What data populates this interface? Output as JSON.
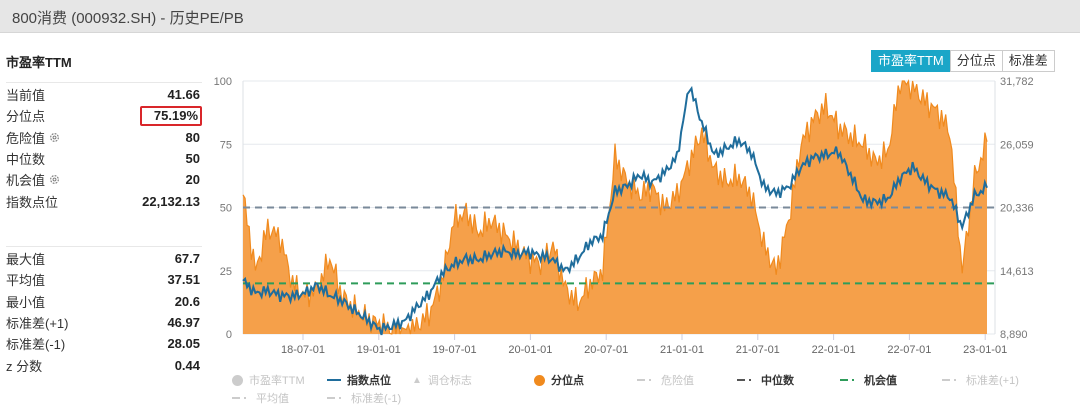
{
  "window": {
    "title": "800消费 (000932.SH) - 历史PE/PB"
  },
  "left_panel": {
    "section_title": "市盈率TTM",
    "stats_top": [
      {
        "label": "当前值",
        "value": "41.66",
        "boxed": false,
        "gear": false
      },
      {
        "label": "分位点",
        "value": "75.19%",
        "boxed": true,
        "gear": false
      },
      {
        "label": "危险值",
        "value": "80",
        "boxed": false,
        "gear": true
      },
      {
        "label": "中位数",
        "value": "50",
        "boxed": false,
        "gear": false
      },
      {
        "label": "机会值",
        "value": "20",
        "boxed": false,
        "gear": true
      },
      {
        "label": "指数点位",
        "value": "22,132.13",
        "boxed": false,
        "gear": false
      }
    ],
    "stats_bottom": [
      {
        "label": "最大值",
        "value": "67.7"
      },
      {
        "label": "平均值",
        "value": "37.51"
      },
      {
        "label": "最小值",
        "value": "20.6"
      },
      {
        "label": "标准差(+1)",
        "value": "46.97"
      },
      {
        "label": "标准差(-1)",
        "value": "28.05"
      },
      {
        "label": "z 分数",
        "value": "0.44"
      }
    ]
  },
  "tabs": [
    {
      "label": "市盈率TTM",
      "active": true
    },
    {
      "label": "分位点",
      "active": false
    },
    {
      "label": "标准差",
      "active": false
    }
  ],
  "colors": {
    "percentile_fill": "#f5a04a",
    "percentile_line": "#f08a1e",
    "index_line": "#1f6d9c",
    "median_line": "#7a8a9a",
    "opportunity_line": "#2e9c5a",
    "tab_active": "#1aa6c8",
    "highlight_box": "#d9262a"
  },
  "legend": [
    {
      "label": "市盈率TTM",
      "type": "dot",
      "color": "#cccccc",
      "active": false
    },
    {
      "label": "指数点位",
      "type": "line",
      "color": "#1f6d9c",
      "active": true
    },
    {
      "label": "调仓标志",
      "type": "triangle",
      "color": "#cccccc",
      "active": false
    },
    {
      "label": "分位点",
      "type": "dot",
      "color": "#f08a1e",
      "active": true
    },
    {
      "label": "危险值",
      "type": "dash",
      "color": "#cccccc",
      "active": false
    },
    {
      "label": "中位数",
      "type": "dash",
      "color": "#555555",
      "active": true
    },
    {
      "label": "机会值",
      "type": "dash",
      "color": "#2e9c5a",
      "active": true
    },
    {
      "label": "标准差(+1)",
      "type": "dash",
      "color": "#cccccc",
      "active": false
    },
    {
      "label": "平均值",
      "type": "dash",
      "color": "#cccccc",
      "active": false
    },
    {
      "label": "标准差(-1)",
      "type": "dash",
      "color": "#cccccc",
      "active": false
    }
  ],
  "chart_data": {
    "type": "area",
    "title": "市盈率TTM 分位点 / 指数点位",
    "x_tick_labels": [
      "18-07-01",
      "19-01-01",
      "19-07-01",
      "20-01-01",
      "20-07-01",
      "21-01-01",
      "21-07-01",
      "22-01-01",
      "22-07-01",
      "23-01-01"
    ],
    "left_axis": {
      "label": "分位点",
      "ticks": [
        0,
        25,
        50,
        75,
        100
      ],
      "range": [
        0,
        100
      ]
    },
    "right_axis": {
      "label": "指数点位",
      "ticks": [
        "8,890",
        "14,613",
        "20,336",
        "26,059",
        "31,782"
      ],
      "range": [
        8890,
        31782
      ]
    },
    "reference_lines": [
      {
        "name": "中位数",
        "value": 50,
        "color": "#7a8a9a",
        "style": "dashed"
      },
      {
        "name": "机会值",
        "value": 20,
        "color": "#2e9c5a",
        "style": "dashed"
      }
    ],
    "x_range": [
      "2018-01",
      "2023-01"
    ],
    "series": [
      {
        "name": "分位点",
        "axis": "left",
        "kind": "area",
        "x": [
          "18-01",
          "18-02",
          "18-03",
          "18-04",
          "18-05",
          "18-06",
          "18-07",
          "18-08",
          "18-09",
          "18-10",
          "18-11",
          "18-12",
          "19-01",
          "19-02",
          "19-03",
          "19-04",
          "19-05",
          "19-06",
          "19-07",
          "19-08",
          "19-09",
          "19-10",
          "19-11",
          "19-12",
          "20-01",
          "20-02",
          "20-03",
          "20-04",
          "20-05",
          "20-06",
          "20-07",
          "20-08",
          "20-09",
          "20-10",
          "20-11",
          "20-12",
          "21-01",
          "21-02",
          "21-03",
          "21-04",
          "21-05",
          "21-06",
          "21-07",
          "21-08",
          "21-09",
          "21-10",
          "21-11",
          "21-12",
          "22-01",
          "22-02",
          "22-03",
          "22-04",
          "22-05",
          "22-06",
          "22-07",
          "22-08",
          "22-09",
          "22-10",
          "22-11",
          "22-12",
          "23-01"
        ],
        "values": [
          55,
          25,
          42,
          38,
          20,
          15,
          18,
          30,
          15,
          10,
          6,
          4,
          2,
          1,
          3,
          8,
          20,
          45,
          48,
          40,
          45,
          40,
          35,
          30,
          28,
          35,
          18,
          12,
          20,
          25,
          70,
          60,
          55,
          58,
          50,
          55,
          68,
          80,
          65,
          60,
          62,
          55,
          35,
          25,
          45,
          75,
          85,
          90,
          82,
          78,
          75,
          68,
          72,
          100,
          98,
          92,
          88,
          80,
          25,
          62,
          76
        ]
      },
      {
        "name": "指数点位",
        "axis": "right",
        "kind": "line",
        "x": [
          "18-01",
          "18-02",
          "18-03",
          "18-04",
          "18-05",
          "18-06",
          "18-07",
          "18-08",
          "18-09",
          "18-10",
          "18-11",
          "18-12",
          "19-01",
          "19-02",
          "19-03",
          "19-04",
          "19-05",
          "19-06",
          "19-07",
          "19-08",
          "19-09",
          "19-10",
          "19-11",
          "19-12",
          "20-01",
          "20-02",
          "20-03",
          "20-04",
          "20-05",
          "20-06",
          "20-07",
          "20-08",
          "20-09",
          "20-10",
          "20-11",
          "20-12",
          "21-01",
          "21-02",
          "21-03",
          "21-04",
          "21-05",
          "21-06",
          "21-07",
          "21-08",
          "21-09",
          "21-10",
          "21-11",
          "21-12",
          "22-01",
          "22-02",
          "22-03",
          "22-04",
          "22-05",
          "22-06",
          "22-07",
          "22-08",
          "22-09",
          "22-10",
          "22-11",
          "22-12",
          "23-01"
        ],
        "values": [
          13700,
          12600,
          12800,
          12400,
          12300,
          12600,
          13300,
          12400,
          11900,
          11000,
          10200,
          9300,
          9600,
          10000,
          11300,
          12500,
          14300,
          15200,
          15700,
          15600,
          16100,
          16400,
          16100,
          16300,
          16000,
          15600,
          14600,
          15700,
          17200,
          17800,
          21800,
          22300,
          23300,
          22600,
          23500,
          24900,
          31400,
          28000,
          25100,
          25700,
          26400,
          25300,
          22200,
          21600,
          22200,
          24000,
          24900,
          25100,
          25400,
          23300,
          21000,
          20800,
          21100,
          23000,
          24000,
          22700,
          21800,
          21300,
          18600,
          21400,
          22132
        ]
      }
    ]
  }
}
